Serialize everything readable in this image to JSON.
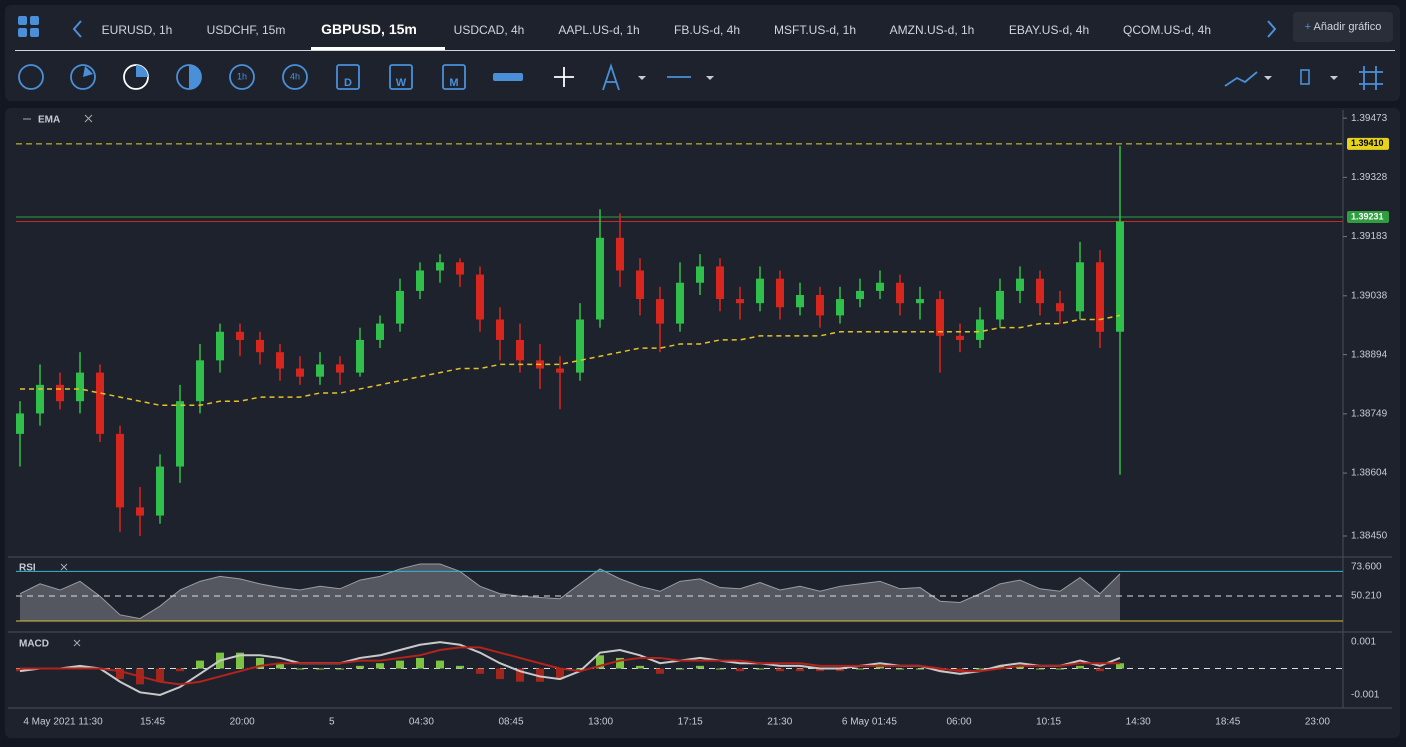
{
  "tabs": [
    "EURUSD, 1h",
    "USDCHF, 15m",
    "GBPUSD, 15m",
    "USDCAD, 4h",
    "AAPL.US-d, 1h",
    "FB.US-d, 4h",
    "MSFT.US-d, 1h",
    "AMZN.US-d, 1h",
    "EBAY.US-d, 4h",
    "QCOM.US-d, 4h"
  ],
  "add_chart": "Añadir gráfico",
  "toolbar": {
    "timeframes": [
      "1h",
      "4h"
    ],
    "calendars": [
      "D",
      "W",
      "M"
    ]
  },
  "chart": {
    "type": "candlestick",
    "indicator": "EMA",
    "up_color": "#2fbf4a",
    "down_color": "#d7261e",
    "ema_color": "#e6c229",
    "ylim": [
      1.38401,
      1.39488
    ],
    "yticks": [
      {
        "value": 1.39473,
        "label": "1.39473"
      },
      {
        "value": 1.39328,
        "label": "1.39328"
      },
      {
        "value": 1.39183,
        "label": "1.39183"
      },
      {
        "value": 1.39038,
        "label": "1.39038"
      },
      {
        "value": 1.38894,
        "label": "1.38894"
      },
      {
        "value": 1.38749,
        "label": "1.38749"
      },
      {
        "value": 1.38604,
        "label": "1.38604"
      },
      {
        "value": 1.3845,
        "label": "1.38450"
      }
    ],
    "levels": [
      {
        "value": 1.3941,
        "label": "1.39410",
        "color": "#e6d31e"
      },
      {
        "value": 1.39231,
        "label": "1.39231",
        "color": "#2e9e3e"
      },
      {
        "value": 1.3922,
        "color": "#c62828"
      }
    ],
    "x_labels": [
      "4 May 2021 11:30",
      "15:45",
      "20:00",
      "5",
      "04:30",
      "08:45",
      "13:00",
      "17:15",
      "21:30",
      "6 May 01:45",
      "06:00",
      "10:15",
      "14:30",
      "18:45",
      "23:00"
    ],
    "candles": [
      [
        1.387,
        1.3878,
        1.3862,
        1.3875
      ],
      [
        1.3875,
        1.3887,
        1.3872,
        1.3882
      ],
      [
        1.3882,
        1.3885,
        1.3876,
        1.3878
      ],
      [
        1.3878,
        1.389,
        1.3875,
        1.3885
      ],
      [
        1.3885,
        1.3887,
        1.3868,
        1.387
      ],
      [
        1.387,
        1.3872,
        1.3846,
        1.3852
      ],
      [
        1.3852,
        1.3857,
        1.3845,
        1.385
      ],
      [
        1.385,
        1.3865,
        1.3848,
        1.3862
      ],
      [
        1.3862,
        1.3882,
        1.3858,
        1.3878
      ],
      [
        1.3878,
        1.3892,
        1.3875,
        1.3888
      ],
      [
        1.3888,
        1.3897,
        1.3885,
        1.3895
      ],
      [
        1.3895,
        1.3897,
        1.3889,
        1.3893
      ],
      [
        1.3893,
        1.3895,
        1.3887,
        1.389
      ],
      [
        1.389,
        1.3892,
        1.3883,
        1.3886
      ],
      [
        1.3886,
        1.3889,
        1.3882,
        1.3884
      ],
      [
        1.3884,
        1.389,
        1.3882,
        1.3887
      ],
      [
        1.3887,
        1.3889,
        1.3882,
        1.3885
      ],
      [
        1.3885,
        1.3896,
        1.3884,
        1.3893
      ],
      [
        1.3893,
        1.3899,
        1.3891,
        1.3897
      ],
      [
        1.3897,
        1.3908,
        1.3895,
        1.3905
      ],
      [
        1.3905,
        1.3912,
        1.3903,
        1.391
      ],
      [
        1.391,
        1.3914,
        1.3907,
        1.3912
      ],
      [
        1.3912,
        1.3913,
        1.3906,
        1.3909
      ],
      [
        1.3909,
        1.3911,
        1.3895,
        1.3898
      ],
      [
        1.3898,
        1.3901,
        1.3888,
        1.3893
      ],
      [
        1.3893,
        1.3897,
        1.3885,
        1.3888
      ],
      [
        1.3888,
        1.3892,
        1.3881,
        1.3886
      ],
      [
        1.3886,
        1.3889,
        1.3876,
        1.3885
      ],
      [
        1.3885,
        1.3902,
        1.3883,
        1.3898
      ],
      [
        1.3898,
        1.3925,
        1.3896,
        1.3918
      ],
      [
        1.3918,
        1.3924,
        1.3906,
        1.391
      ],
      [
        1.391,
        1.3913,
        1.3899,
        1.3903
      ],
      [
        1.3903,
        1.3906,
        1.389,
        1.3897
      ],
      [
        1.3897,
        1.3912,
        1.3895,
        1.3907
      ],
      [
        1.3907,
        1.3914,
        1.3904,
        1.3911
      ],
      [
        1.3911,
        1.3913,
        1.39,
        1.3903
      ],
      [
        1.3903,
        1.3906,
        1.3898,
        1.3902
      ],
      [
        1.3902,
        1.3911,
        1.39,
        1.3908
      ],
      [
        1.3908,
        1.391,
        1.3898,
        1.3901
      ],
      [
        1.3901,
        1.3907,
        1.3899,
        1.3904
      ],
      [
        1.3904,
        1.3906,
        1.3896,
        1.3899
      ],
      [
        1.3899,
        1.3906,
        1.3897,
        1.3903
      ],
      [
        1.3903,
        1.3908,
        1.3901,
        1.3905
      ],
      [
        1.3905,
        1.391,
        1.3903,
        1.3907
      ],
      [
        1.3907,
        1.3909,
        1.3899,
        1.3902
      ],
      [
        1.3902,
        1.3906,
        1.3898,
        1.3903
      ],
      [
        1.3903,
        1.3905,
        1.3885,
        1.3894
      ],
      [
        1.3894,
        1.3897,
        1.389,
        1.3893
      ],
      [
        1.3893,
        1.3901,
        1.3891,
        1.3898
      ],
      [
        1.3898,
        1.3908,
        1.3896,
        1.3905
      ],
      [
        1.3905,
        1.3911,
        1.3902,
        1.3908
      ],
      [
        1.3908,
        1.391,
        1.3899,
        1.3902
      ],
      [
        1.3902,
        1.3905,
        1.3897,
        1.39
      ],
      [
        1.39,
        1.3917,
        1.3898,
        1.3912
      ],
      [
        1.3912,
        1.3915,
        1.3891,
        1.3895
      ],
      [
        1.3895,
        1.39405,
        1.386,
        1.3922
      ]
    ],
    "ema": [
      1.3881,
      1.3881,
      1.3881,
      1.3881,
      1.388,
      1.3879,
      1.3878,
      1.3877,
      1.3877,
      1.3877,
      1.3878,
      1.3878,
      1.3879,
      1.3879,
      1.3879,
      1.388,
      1.388,
      1.3881,
      1.3882,
      1.3883,
      1.3884,
      1.3885,
      1.3886,
      1.3886,
      1.3887,
      1.3887,
      1.3887,
      1.3887,
      1.3888,
      1.3889,
      1.389,
      1.3891,
      1.3891,
      1.3892,
      1.3892,
      1.3893,
      1.3893,
      1.3894,
      1.3894,
      1.3894,
      1.3894,
      1.3895,
      1.3895,
      1.3895,
      1.3895,
      1.3895,
      1.3895,
      1.3895,
      1.3895,
      1.3896,
      1.3896,
      1.3897,
      1.3897,
      1.3898,
      1.3898,
      1.3899
    ]
  },
  "rsi": {
    "title": "RSI",
    "ylim": [
      24.4,
      79.2
    ],
    "yticks": [
      {
        "value": 73.6,
        "label": "73.600"
      },
      {
        "value": 50.21,
        "label": "50.210"
      }
    ],
    "levels": [
      {
        "value": 70,
        "color": "#35b6d8"
      },
      {
        "value": 30,
        "color": "#d8c23a"
      }
    ],
    "values": [
      52,
      60,
      55,
      62,
      50,
      35,
      32,
      42,
      55,
      62,
      66,
      64,
      60,
      57,
      55,
      58,
      56,
      63,
      66,
      72,
      76,
      76,
      70,
      58,
      52,
      50,
      49,
      48,
      60,
      72,
      64,
      58,
      54,
      62,
      64,
      57,
      56,
      61,
      55,
      58,
      54,
      58,
      60,
      62,
      56,
      57,
      46,
      45,
      52,
      60,
      63,
      56,
      54,
      65,
      52,
      68
    ]
  },
  "macd": {
    "title": "MACD",
    "ylim": [
      -0.00138,
      0.00123
    ],
    "yticks": [
      0.001,
      -0.001
    ],
    "macd": [
      -0.0001,
      0,
      0,
      0.0001,
      0,
      -0.0005,
      -0.0009,
      -0.001,
      -0.0007,
      -0.0002,
      0.0003,
      0.0005,
      0.0005,
      0.0004,
      0.0002,
      0.0002,
      0.0002,
      0.0004,
      0.0005,
      0.0007,
      0.0009,
      0.001,
      0.0009,
      0.0006,
      0.0002,
      -0.0001,
      -0.0003,
      -0.0004,
      -0.0001,
      0.0006,
      0.0007,
      0.0005,
      0.0002,
      0.0003,
      0.0004,
      0.0003,
      0.0002,
      0.0002,
      0.0001,
      0.0001,
      0,
      0,
      0.0001,
      0.0002,
      0.0001,
      0.0001,
      -0.0001,
      -0.0002,
      -0.0001,
      0.0001,
      0.0002,
      0.0001,
      0.0001,
      0.0003,
      0.0001,
      0.0004
    ],
    "signal": [
      0,
      0,
      0,
      0,
      0,
      -0.0001,
      -0.0003,
      -0.0005,
      -0.0006,
      -0.0005,
      -0.0003,
      -0.0001,
      0.0001,
      0.0002,
      0.0002,
      0.0002,
      0.0002,
      0.0003,
      0.0003,
      0.0004,
      0.0005,
      0.0007,
      0.0008,
      0.0008,
      0.0006,
      0.0004,
      0.0002,
      0,
      -0.0001,
      0.0001,
      0.0003,
      0.0004,
      0.0004,
      0.0003,
      0.0003,
      0.0003,
      0.0003,
      0.0002,
      0.0002,
      0.0002,
      0.0001,
      0.0001,
      0.0001,
      0.0001,
      0.0001,
      0.0001,
      0,
      -0.0001,
      -0.0001,
      0,
      0.0001,
      0.0001,
      0.0001,
      0.0002,
      0.0002,
      0.0002
    ],
    "histogram": [
      -0.0001,
      0,
      0,
      0.0001,
      0,
      -0.0004,
      -0.0006,
      -0.0005,
      -0.0001,
      0.0003,
      0.0006,
      0.0006,
      0.0004,
      0.0002,
      0,
      0,
      0,
      0.0001,
      0.0002,
      0.0003,
      0.0004,
      0.0003,
      0.0001,
      -0.0002,
      -0.0004,
      -0.0005,
      -0.0005,
      -0.0004,
      0,
      0.0005,
      0.0004,
      0.0001,
      -0.0002,
      0,
      0.0001,
      0,
      -0.0001,
      0,
      -0.0001,
      -0.0001,
      -0.0001,
      -0.0001,
      0,
      0.0001,
      0,
      0,
      -0.0001,
      -0.0001,
      0,
      0.0001,
      0.0001,
      0,
      0,
      0.0001,
      -0.0001,
      0.0002
    ]
  }
}
